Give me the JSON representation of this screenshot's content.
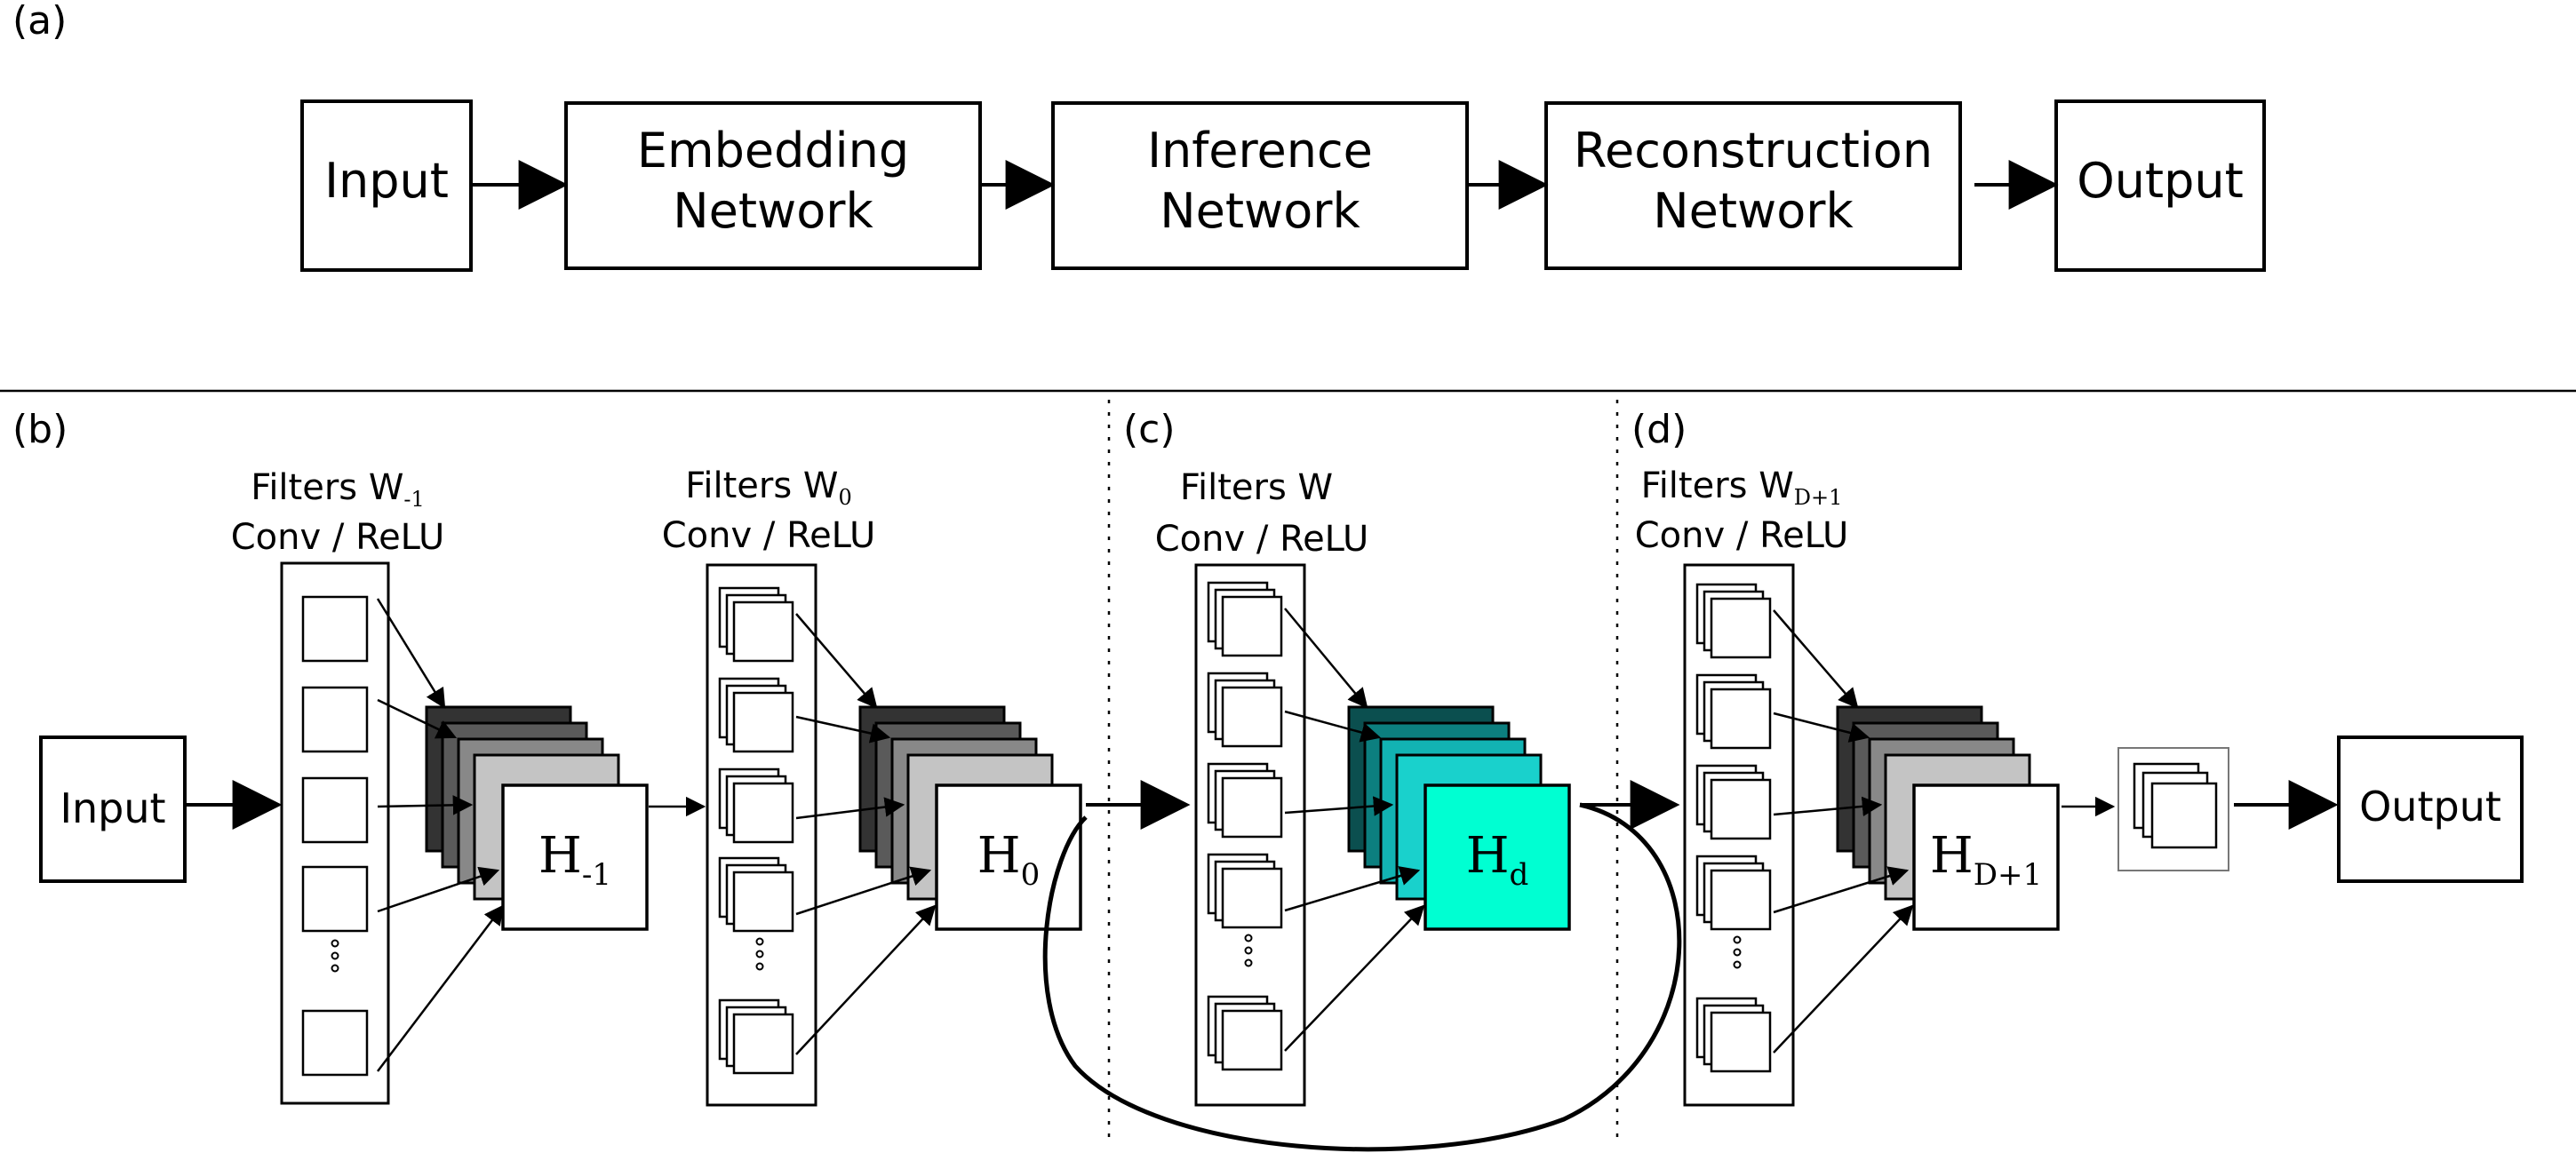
{
  "panel_labels": {
    "a": "(a)",
    "b": "(b)",
    "c": "(c)",
    "d": "(d)"
  },
  "pipeline": {
    "input": "Input",
    "embedding": [
      "Embedding",
      "Network"
    ],
    "inference": [
      "Inference",
      "Network"
    ],
    "reconstruction": [
      "Reconstruction",
      "Network"
    ],
    "output": "Output"
  },
  "network": {
    "input": "Input",
    "output": "Output",
    "stage_minus1": {
      "filters": "Filters W",
      "filters_sub": "-1",
      "op": "Conv / ReLU",
      "h": "H",
      "h_sub": "-1"
    },
    "stage_0": {
      "filters": "Filters W",
      "filters_sub": "0",
      "op": "Conv / ReLU",
      "h": "H",
      "h_sub": "0"
    },
    "stage_d": {
      "filters": "Filters W",
      "filters_sub": "",
      "op": "Conv / ReLU",
      "h": "H",
      "h_sub": "d"
    },
    "stage_D1": {
      "filters": "Filters W",
      "filters_sub": "D+1",
      "op": "Conv / ReLU",
      "h": "H",
      "h_sub": "D+1"
    }
  },
  "colors": {
    "gray_stack": [
      "#333333",
      "#5a5a5a",
      "#888888",
      "#c4c4c4"
    ],
    "teal_stack": [
      "#0b4f4f",
      "#0c7f7f",
      "#12b3b3",
      "#19d1cc"
    ],
    "teal_front": "#00ffd2"
  }
}
